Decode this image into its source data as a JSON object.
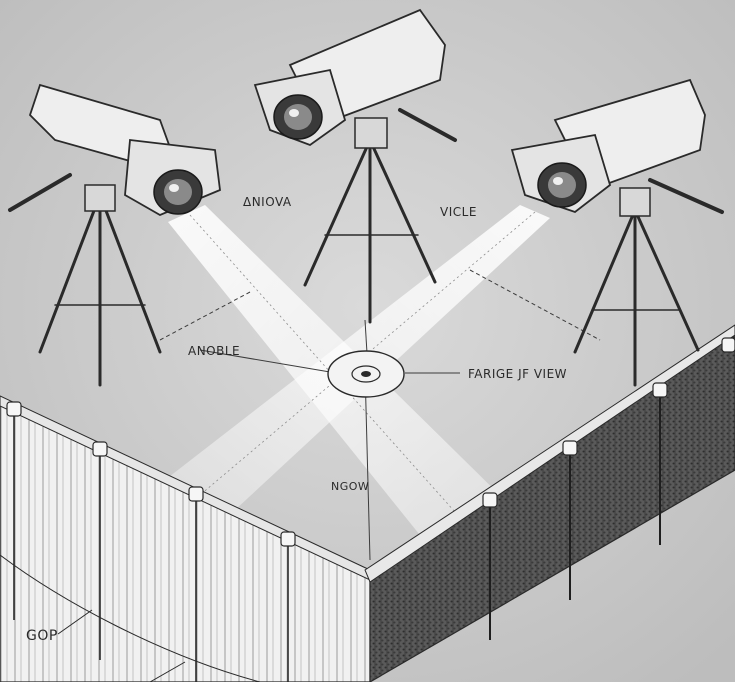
{
  "labels": {
    "top_left": "ΔNIOVA",
    "top_right": "VICLE",
    "left": "ANOBLE",
    "right": "FARIGE JF VIEW",
    "center": "NGOW",
    "bottom_left": "GOP"
  },
  "colors": {
    "background": "#cfcfcf",
    "ink": "#2a2a2a",
    "beam": "#ffffff",
    "fence_light": "#f2f2f2",
    "fence_dark": "#4a4a4a"
  },
  "cameras": [
    {
      "icon": "security-camera-icon",
      "position": "left"
    },
    {
      "icon": "security-camera-icon",
      "position": "top-center"
    },
    {
      "icon": "security-camera-icon",
      "position": "right"
    }
  ]
}
